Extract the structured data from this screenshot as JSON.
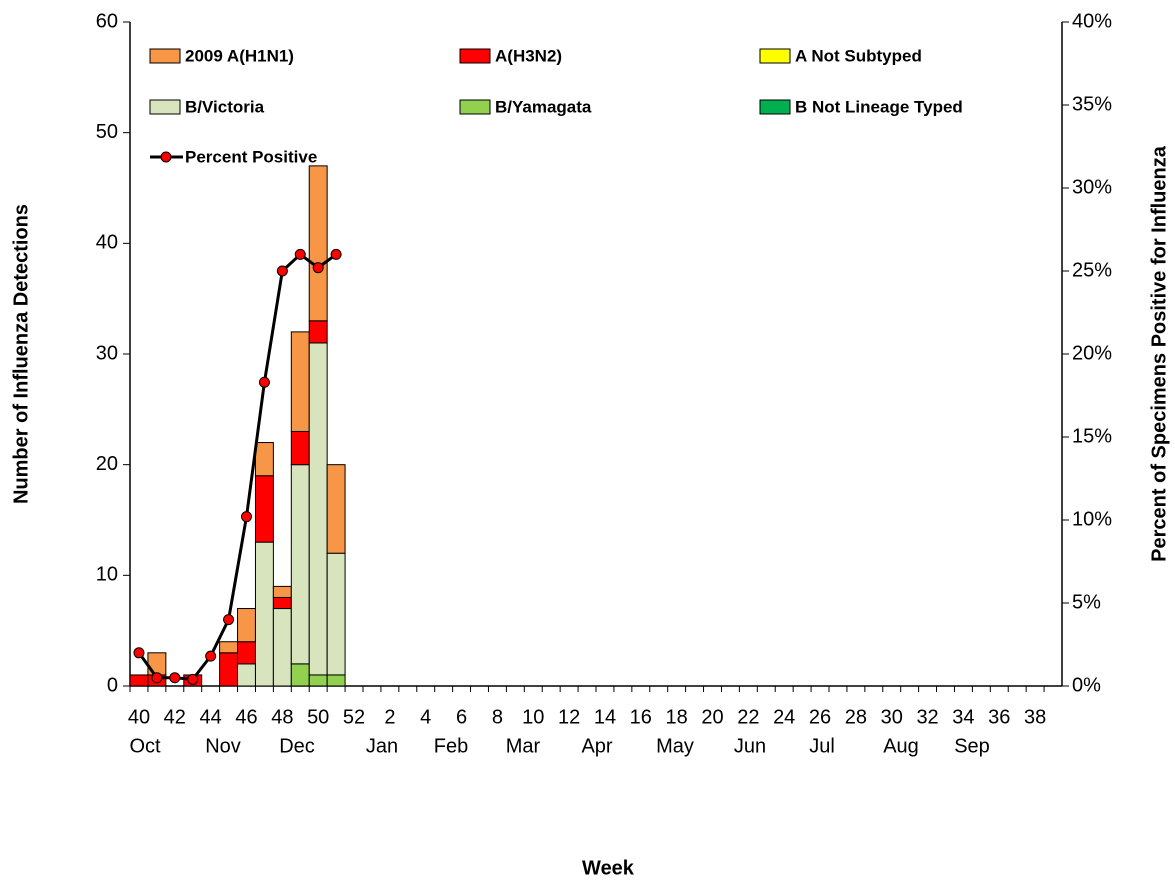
{
  "chart_data": {
    "type": "bar",
    "stacked": true,
    "x_label": "Week",
    "y_label": "Number of Influenza Detections",
    "y2_label": "Percent of Specimens Positive for Influenza",
    "categories": [
      "40",
      null,
      "42",
      null,
      "44",
      null,
      "46",
      null,
      "48",
      null,
      "50",
      null,
      "52",
      null,
      "2",
      null,
      "4",
      null,
      "6",
      null,
      "8",
      null,
      "10",
      null,
      "12",
      null,
      "14",
      null,
      "16",
      null,
      "18",
      null,
      "20",
      null,
      "22",
      null,
      "24",
      null,
      "26",
      null,
      "28",
      null,
      "30",
      null,
      "32",
      null,
      "34",
      null,
      "36",
      null,
      "38",
      null
    ],
    "months": [
      "Oct",
      "Nov",
      "Dec",
      "Jan",
      "Feb",
      "Mar",
      "Apr",
      "May",
      "Jun",
      "Jul",
      "Aug",
      "Sep"
    ],
    "series": [
      {
        "name": "2009 A(H1N1)",
        "color": "#F79646",
        "values": [
          0,
          2,
          0,
          0,
          0,
          1,
          3,
          3,
          1,
          9,
          14,
          8,
          null,
          null,
          null,
          null,
          null,
          null,
          null,
          null,
          null,
          null,
          null,
          null,
          null,
          null,
          null,
          null,
          null,
          null,
          null,
          null,
          null,
          null,
          null,
          null,
          null,
          null,
          null,
          null,
          null,
          null,
          null,
          null,
          null,
          null,
          null,
          null,
          null,
          null,
          null,
          null
        ]
      },
      {
        "name": "A(H3N2)",
        "color": "#FF0000",
        "values": [
          1,
          1,
          0,
          1,
          0,
          3,
          2,
          6,
          1,
          3,
          2,
          0,
          null,
          null,
          null,
          null,
          null,
          null,
          null,
          null,
          null,
          null,
          null,
          null,
          null,
          null,
          null,
          null,
          null,
          null,
          null,
          null,
          null,
          null,
          null,
          null,
          null,
          null,
          null,
          null,
          null,
          null,
          null,
          null,
          null,
          null,
          null,
          null,
          null,
          null,
          null,
          null
        ]
      },
      {
        "name": "A Not Subtyped",
        "color": "#FFFF00",
        "values": [
          0,
          0,
          0,
          0,
          0,
          0,
          0,
          0,
          0,
          0,
          0,
          0,
          null,
          null,
          null,
          null,
          null,
          null,
          null,
          null,
          null,
          null,
          null,
          null,
          null,
          null,
          null,
          null,
          null,
          null,
          null,
          null,
          null,
          null,
          null,
          null,
          null,
          null,
          null,
          null,
          null,
          null,
          null,
          null,
          null,
          null,
          null,
          null,
          null,
          null,
          null,
          null
        ]
      },
      {
        "name": "B/Victoria",
        "color": "#D7E4BD",
        "values": [
          0,
          0,
          0,
          0,
          0,
          0,
          2,
          13,
          7,
          18,
          30,
          11,
          null,
          null,
          null,
          null,
          null,
          null,
          null,
          null,
          null,
          null,
          null,
          null,
          null,
          null,
          null,
          null,
          null,
          null,
          null,
          null,
          null,
          null,
          null,
          null,
          null,
          null,
          null,
          null,
          null,
          null,
          null,
          null,
          null,
          null,
          null,
          null,
          null,
          null,
          null,
          null
        ]
      },
      {
        "name": "B/Yamagata",
        "color": "#92D050",
        "values": [
          0,
          0,
          0,
          0,
          0,
          0,
          0,
          0,
          0,
          2,
          1,
          1,
          null,
          null,
          null,
          null,
          null,
          null,
          null,
          null,
          null,
          null,
          null,
          null,
          null,
          null,
          null,
          null,
          null,
          null,
          null,
          null,
          null,
          null,
          null,
          null,
          null,
          null,
          null,
          null,
          null,
          null,
          null,
          null,
          null,
          null,
          null,
          null,
          null,
          null,
          null,
          null
        ]
      },
      {
        "name": "B Not Lineage Typed",
        "color": "#00B050",
        "values": [
          0,
          0,
          0,
          0,
          0,
          0,
          0,
          0,
          0,
          0,
          0,
          0,
          null,
          null,
          null,
          null,
          null,
          null,
          null,
          null,
          null,
          null,
          null,
          null,
          null,
          null,
          null,
          null,
          null,
          null,
          null,
          null,
          null,
          null,
          null,
          null,
          null,
          null,
          null,
          null,
          null,
          null,
          null,
          null,
          null,
          null,
          null,
          null,
          null,
          null,
          null,
          null
        ]
      },
      {
        "name": "Percent Positive",
        "color": "#000000",
        "marker_color": "#FF0000",
        "axis": "y2",
        "values": [
          2.0,
          0.5,
          0.5,
          0.4,
          1.8,
          4.0,
          10.2,
          18.3,
          25.0,
          26.0,
          25.2,
          26.0,
          null,
          null,
          null,
          null,
          null,
          null,
          null,
          null,
          null,
          null,
          null,
          null,
          null,
          null,
          null,
          null,
          null,
          null,
          null,
          null,
          null,
          null,
          null,
          null,
          null,
          null,
          null,
          null,
          null,
          null,
          null,
          null,
          null,
          null,
          null,
          null,
          null,
          null,
          null,
          null
        ]
      }
    ],
    "ylim": [
      0,
      60
    ],
    "yticks": [
      0,
      10,
      20,
      30,
      40,
      50,
      60
    ],
    "y2lim": [
      0,
      40
    ],
    "y2ticks": [
      {
        "value": 0,
        "label": "0%"
      },
      {
        "value": 5,
        "label": "5%"
      },
      {
        "value": 10,
        "label": "10%"
      },
      {
        "value": 15,
        "label": "15%"
      },
      {
        "value": 20,
        "label": "20%"
      },
      {
        "value": 25,
        "label": "25%"
      },
      {
        "value": 30,
        "label": "30%"
      },
      {
        "value": 35,
        "label": "35%"
      },
      {
        "value": 40,
        "label": "40%"
      }
    ],
    "grid": false
  }
}
